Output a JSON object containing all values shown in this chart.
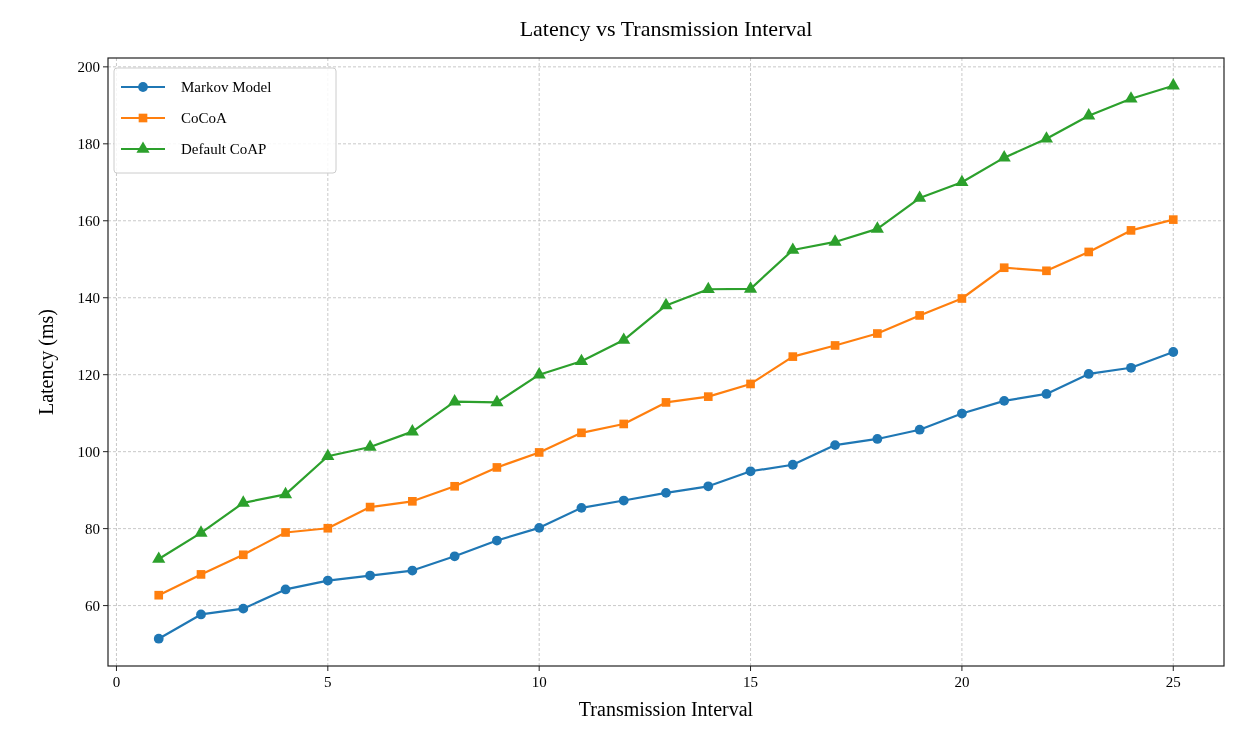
{
  "chart_data": {
    "type": "line",
    "title": "Latency vs Transmission Interval",
    "xlabel": "Transmission Interval",
    "ylabel": "Latency (ms)",
    "x": [
      1,
      2,
      3,
      4,
      5,
      6,
      7,
      8,
      9,
      10,
      11,
      12,
      13,
      14,
      15,
      16,
      17,
      18,
      19,
      20,
      21,
      22,
      23,
      24,
      25
    ],
    "series": [
      {
        "name": "Markov Model",
        "color": "#1f77b4",
        "marker": "circle",
        "values": [
          51.4,
          57.7,
          59.2,
          64.2,
          66.5,
          67.8,
          69.1,
          72.8,
          76.9,
          80.2,
          85.4,
          87.3,
          89.3,
          91.0,
          94.9,
          96.6,
          101.7,
          103.3,
          105.7,
          109.9,
          113.2,
          115.0,
          120.2,
          121.8,
          125.9
        ]
      },
      {
        "name": "CoCoA",
        "color": "#ff7f0e",
        "marker": "square",
        "values": [
          62.7,
          68.1,
          73.2,
          79.0,
          80.1,
          85.6,
          87.1,
          91.0,
          95.9,
          99.8,
          104.9,
          107.2,
          112.8,
          114.3,
          117.6,
          124.7,
          127.6,
          130.7,
          135.4,
          139.8,
          147.8,
          147.0,
          151.9,
          157.5,
          160.3
        ]
      },
      {
        "name": "Default CoAP",
        "color": "#2ca02c",
        "marker": "triangle",
        "values": [
          72.1,
          78.9,
          86.7,
          88.9,
          98.8,
          101.2,
          105.2,
          113.0,
          112.8,
          120.0,
          123.5,
          129.0,
          138.0,
          142.2,
          142.3,
          152.4,
          154.5,
          157.9,
          165.9,
          170.0,
          176.4,
          181.3,
          187.3,
          191.7,
          195.1
        ]
      }
    ],
    "xlim": [
      -0.2,
      26.2
    ],
    "ylim": [
      44.3,
      202.3
    ],
    "xticks": [
      0,
      5,
      10,
      15,
      20,
      25
    ],
    "yticks": [
      60,
      80,
      100,
      120,
      140,
      160,
      180,
      200
    ],
    "grid": true,
    "legend": "top left",
    "line_style": "solid"
  }
}
